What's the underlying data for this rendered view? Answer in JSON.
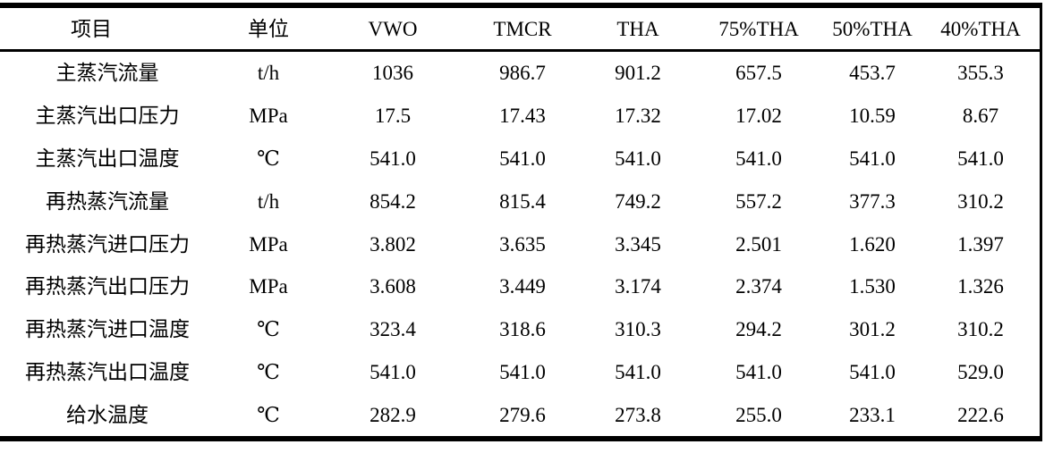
{
  "table": {
    "columns": [
      {
        "label": "项目"
      },
      {
        "label": "单位"
      },
      {
        "label": "VWO"
      },
      {
        "label": "TMCR"
      },
      {
        "label": "THA"
      },
      {
        "label": "75%THA"
      },
      {
        "label": "50%THA"
      },
      {
        "label": "40%THA"
      }
    ],
    "rows": [
      {
        "item": "主蒸汽流量",
        "unit": "t/h",
        "values": [
          "1036",
          "986.7",
          "901.2",
          "657.5",
          "453.7",
          "355.3"
        ]
      },
      {
        "item": "主蒸汽出口压力",
        "unit": "MPa",
        "values": [
          "17.5",
          "17.43",
          "17.32",
          "17.02",
          "10.59",
          "8.67"
        ]
      },
      {
        "item": "主蒸汽出口温度",
        "unit": "℃",
        "values": [
          "541.0",
          "541.0",
          "541.0",
          "541.0",
          "541.0",
          "541.0"
        ]
      },
      {
        "item": "再热蒸汽流量",
        "unit": "t/h",
        "values": [
          "854.2",
          "815.4",
          "749.2",
          "557.2",
          "377.3",
          "310.2"
        ]
      },
      {
        "item": "再热蒸汽进口压力",
        "unit": "MPa",
        "values": [
          "3.802",
          "3.635",
          "3.345",
          "2.501",
          "1.620",
          "1.397"
        ]
      },
      {
        "item": "再热蒸汽出口压力",
        "unit": "MPa",
        "values": [
          "3.608",
          "3.449",
          "3.174",
          "2.374",
          "1.530",
          "1.326"
        ]
      },
      {
        "item": "再热蒸汽进口温度",
        "unit": "℃",
        "values": [
          "323.4",
          "318.6",
          "310.3",
          "294.2",
          "301.2",
          "310.2"
        ]
      },
      {
        "item": "再热蒸汽出口温度",
        "unit": "℃",
        "values": [
          "541.0",
          "541.0",
          "541.0",
          "541.0",
          "541.0",
          "529.0"
        ]
      },
      {
        "item": "给水温度",
        "unit": "℃",
        "values": [
          "282.9",
          "279.6",
          "273.8",
          "255.0",
          "233.1",
          "222.6"
        ]
      }
    ],
    "colors": {
      "border": "#000000",
      "text": "#000000",
      "background": "#ffffff"
    }
  }
}
